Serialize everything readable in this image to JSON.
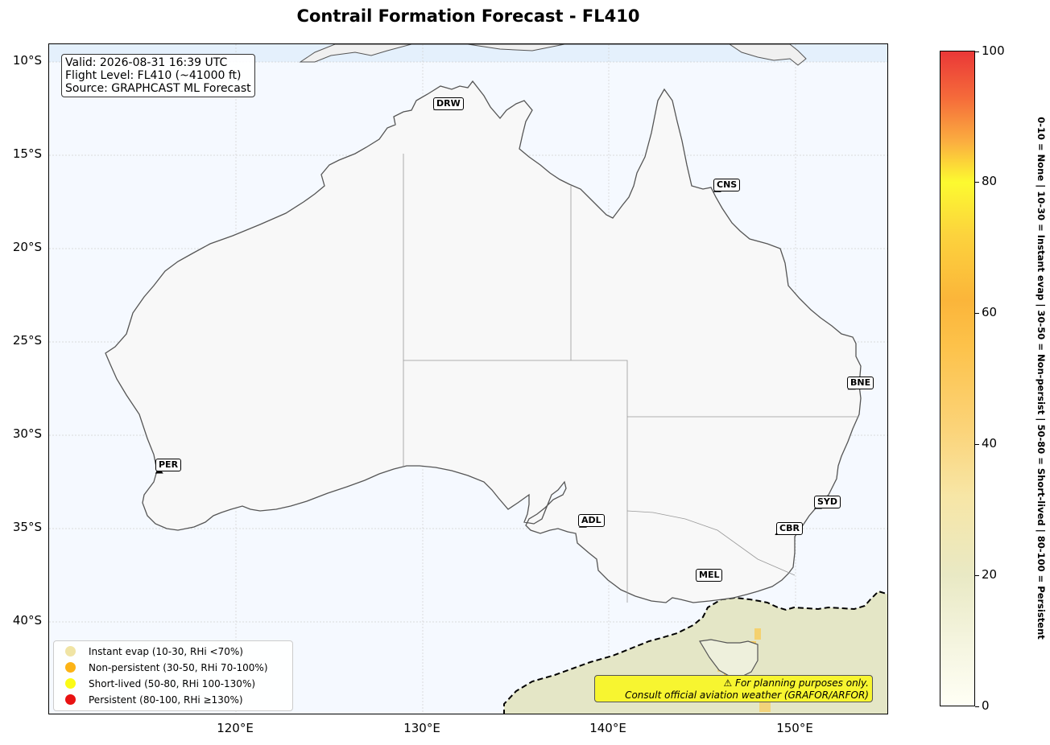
{
  "title": "Contrail Formation Forecast - FL410",
  "info": {
    "valid": "Valid: 2026-08-31 16:39 UTC",
    "flight_level": "Flight Level: FL410 (~41000 ft)",
    "source": "Source: GRAPHCAST ML Forecast"
  },
  "axes": {
    "lat_labels": [
      "10°S",
      "15°S",
      "20°S",
      "25°S",
      "30°S",
      "35°S",
      "40°S"
    ],
    "lon_labels": [
      "120°E",
      "130°E",
      "140°E",
      "150°E"
    ],
    "lon_range": [
      110,
      155
    ],
    "lat_range": [
      -9.1,
      -45.1
    ]
  },
  "cities": [
    {
      "code": "DRW",
      "lon": 130.8,
      "lat": -12.5
    },
    {
      "code": "CNS",
      "lon": 145.8,
      "lat": -16.9
    },
    {
      "code": "BNE",
      "lon": 153.0,
      "lat": -27.5
    },
    {
      "code": "PER",
      "lon": 115.9,
      "lat": -32.0
    },
    {
      "code": "ADL",
      "lon": 138.6,
      "lat": -34.9
    },
    {
      "code": "SYD",
      "lon": 151.2,
      "lat": -33.9
    },
    {
      "code": "CBR",
      "lon": 149.1,
      "lat": -35.3
    },
    {
      "code": "MEL",
      "lon": 144.9,
      "lat": -37.8
    }
  ],
  "legend": [
    {
      "label": "Instant evap (10-30, RHi <70%)",
      "color": "#f0e4a4"
    },
    {
      "label": "Non-persistent (30-50, RHi 70-100%)",
      "color": "#fcb316"
    },
    {
      "label": "Short-lived (50-80, RHi 100-130%)",
      "color": "#fbfb16"
    },
    {
      "label": "Persistent (80-100, RHi ≥130%)",
      "color": "#e81212"
    }
  ],
  "warning": {
    "line1": "⚠ For planning purposes only.",
    "line2": "Consult official aviation weather (GRAFOR/ARFOR)"
  },
  "colorbar": {
    "ticks": [
      "0",
      "20",
      "40",
      "60",
      "80",
      "100"
    ],
    "range": [
      0,
      100
    ],
    "axis_label": "0-10 = None  |  10-30 = Instant evap  |  30-50 = Non-persist  |  50-80 = Short-lived  |  80-100 = Persistent"
  }
}
